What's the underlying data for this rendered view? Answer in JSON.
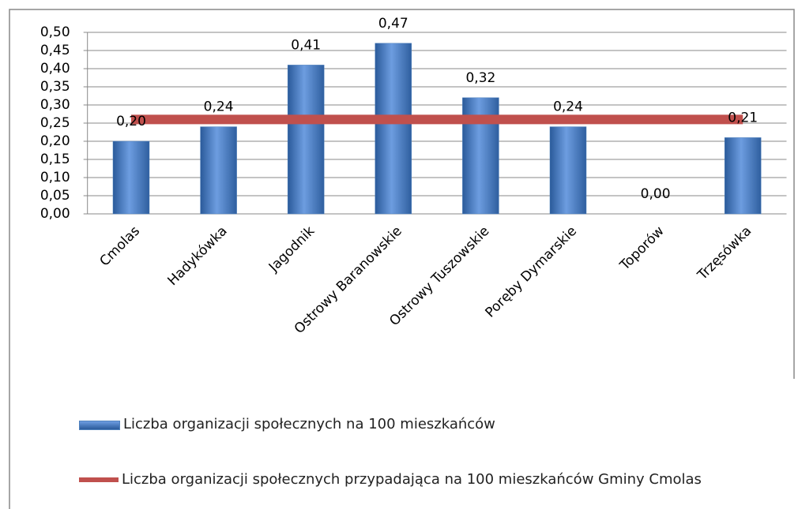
{
  "chart_data": {
    "type": "bar",
    "categories": [
      "Cmolas",
      "Hadykówka",
      "Jagodnik",
      "Ostrowy Baranowskie",
      "Ostrowy Tuszowskie",
      "Poręby Dymarskie",
      "Toporów",
      "Trzęsówka"
    ],
    "series": [
      {
        "name": "Liczba organizacji społecznych na 100 mieszkańców",
        "type": "bar",
        "color": "#4f81bd",
        "values": [
          0.2,
          0.24,
          0.41,
          0.47,
          0.32,
          0.24,
          0,
          0.21
        ],
        "value_labels": [
          "0,20",
          "0,24",
          "0,41",
          "0,47",
          "0,32",
          "0,24",
          "0,00",
          "0,21"
        ]
      },
      {
        "name": "Liczba organizacji społecznych przypadająca na 100 mieszkańców Gminy Cmolas",
        "type": "line",
        "color": "#c0504d",
        "values": [
          0.26,
          0.26,
          0.26,
          0.26,
          0.26,
          0.26,
          0.26,
          0.26
        ]
      }
    ],
    "ylim": [
      0,
      0.5
    ],
    "yticks": [
      {
        "value": 0,
        "label": "0,00"
      },
      {
        "value": 0.05,
        "label": "0,05"
      },
      {
        "value": 0.1,
        "label": "0,10"
      },
      {
        "value": 0.15,
        "label": "0,15"
      },
      {
        "value": 0.2,
        "label": "0,20"
      },
      {
        "value": 0.25,
        "label": "0,25"
      },
      {
        "value": 0.3,
        "label": "0,30"
      },
      {
        "value": 0.35,
        "label": "0,35"
      },
      {
        "value": 0.4,
        "label": "0,40"
      },
      {
        "value": 0.45,
        "label": "0,45"
      },
      {
        "value": 0.5,
        "label": "0,50"
      }
    ],
    "grid": true,
    "legend": "bottom"
  }
}
